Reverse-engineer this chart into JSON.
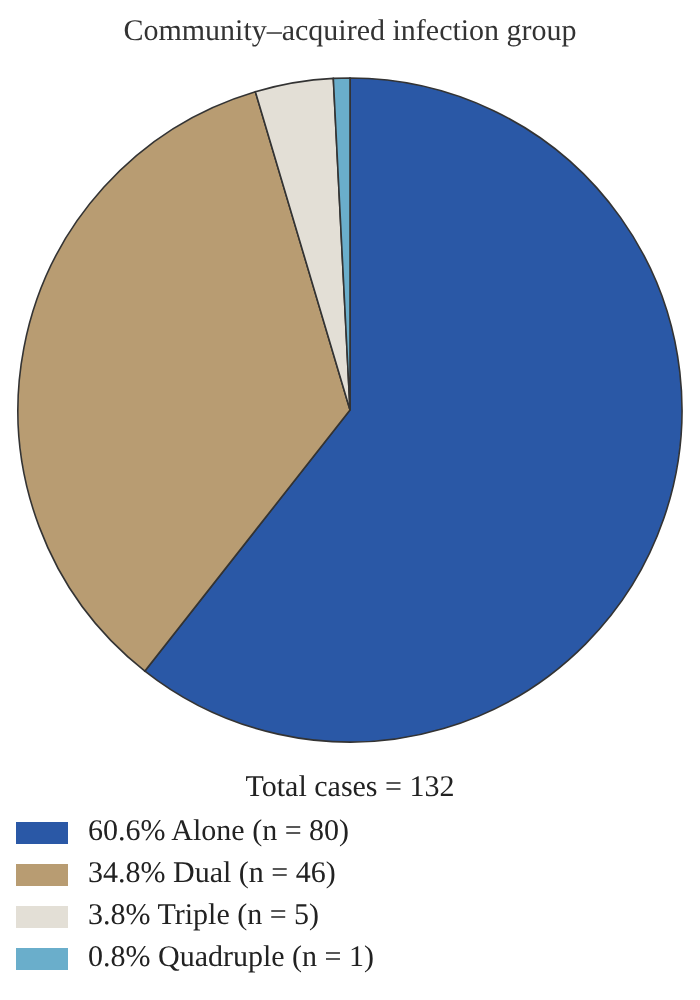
{
  "chart_data": {
    "type": "pie",
    "title": "Community–acquired infection group",
    "categories": [
      "60.6% Alone (n = 80)",
      "34.8% Dual (n = 46)",
      "3.8% Triple (n = 5)",
      "0.8% Quadruple (n = 1)"
    ],
    "values": [
      60.6,
      34.8,
      3.8,
      0.8
    ],
    "colors": [
      "#2a58a6",
      "#b89c72",
      "#e3dfd6",
      "#6aaecb"
    ],
    "annotations": [
      "Total cases = 132"
    ],
    "legend": "bottom left"
  }
}
